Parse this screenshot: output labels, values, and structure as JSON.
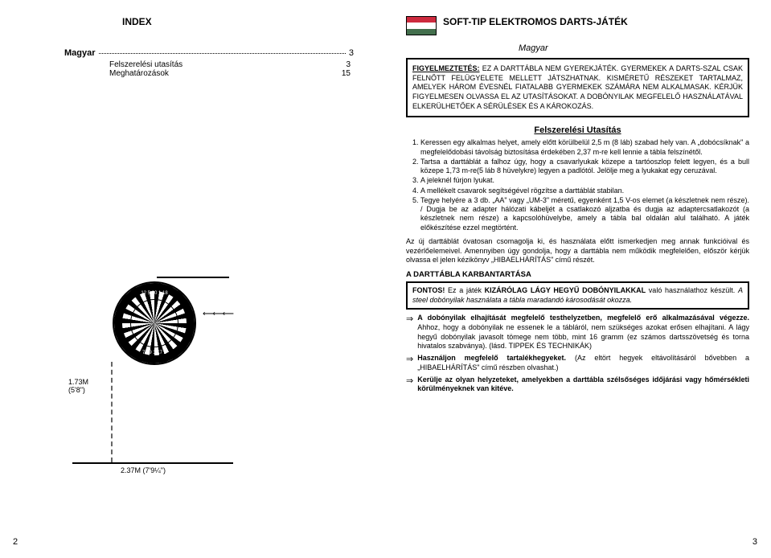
{
  "left": {
    "index_title": "INDEX",
    "row1_label": "Magyar",
    "row1_page": "3",
    "row2_label": "Felszerelési utasítás",
    "row2_page": "3",
    "row3_label": "Meghatározások",
    "row3_page": "15",
    "height_label": "1.73M\n(5'8\")",
    "throw_label": "2.37M (7'9¼\")",
    "dart_numbers_top": "12 5 20 1 18",
    "dart_numbers_bottom": "7 19 3 17 2",
    "pagenum": "2"
  },
  "right": {
    "flag_colors": [
      "#cd2a3e",
      "#ffffff",
      "#436f4d"
    ],
    "title": "SOFT-TIP ELEKTROMOS DARTS-JÁTÉK",
    "lang": "Magyar",
    "warning": "FIGYELMEZTETÉS:  EZ A DARTTÁBLA NEM GYEREKJÁTÉK. GYERMEKEK A DARTS-SZAL CSAK FELNŐTT FELÜGYELETE MELLETT JÁTSZHATNAK.  KISMÉRETŰ RÉSZEKET TARTALMAZ, AMELYEK HÁROM ÉVESNÉL FIATALABB GYERMEKEK SZÁMÁRA NEM ALKALMASAK.  KÉRJÜK FIGYELMESEN OLVASSA EL AZ UTASÍTÁSOKAT.  A DOBÓNYILAK MEGFELELŐ HASZNÁLATÁVAL ELKERÜLHETŐEK A SÉRÜLÉSEK ÉS A KÁROKOZÁS.",
    "warn_label": "FIGYELMEZTETÉS:",
    "section": "Felszerelési Utasítás",
    "li1": "Keressen egy alkalmas helyet, amely előtt körülbelül 2,5 m (8 láb) szabad hely van.  A „dobócsíknak\" a megfelelődobási távolság biztosítása érdekében 2,37 m-re kell lennie a tábla felszínétől.",
    "li2": "Tartsa a darttáblát a falhoz úgy, hogy a csavarlyukak közepe a tartóoszlop felett legyen, és a bull közepe 1,73 m-re(5 láb 8 hüvelykre) legyen a padlótól.  Jelölje meg a lyukakat egy ceruzával.",
    "li3": "A jeleknél fúrjon lyukat.",
    "li4": "A mellékelt csavarok segítségével rögzítse a darttáblát stabilan.",
    "li5": "Tegye helyére a 3 db. „AA\" vagy „UM-3\" méretű, egyenként 1,5 V-os elemet (a készletnek nem része). / Dugja be az adapter hálózati kábeljét a csatlakozó aljzatba és dugja az adaptercsatlakozót (a készletnek nem része) a kapcsolóhüvelybe, amely a tábla bal oldalán alul található. A játék előkészítése ezzel megtörtént.",
    "para": "Az új darttáblát óvatosan csomagolja ki, és használata előtt ismerkedjen meg annak funkcióival és vezérlőelemeivel.  Amennyiben úgy gondolja, hogy a darttábla nem működik megfelelően, először kérjük olvassa el jelen kézikönyv „HIBAELHÁRÍTÁS\" című részét.",
    "subheader": "A DARTTÁBLA KARBANTARTÁSA",
    "tipbox_html": "<b>FONTOS!</b>   Ez   a   játék   <b>KIZÁRÓLAG    LÁGY    HEGYŰ DOBÓNYILAKKAL</b> való használathoz készült.   <i>A steel dobónyilak használata a tábla maradandó károsodását okozza.</i>",
    "arrow1_html": "<b>A dobónyilak elhajítását megfelelő testhelyzetben, megfelelő erő alkalmazásával végezze.</b>   Ahhoz, hogy a dobónyilak ne essenek le a tábláról, nem szükséges azokat erősen elhajítani.  A lágy hegyű dobónyilak javasolt tömege nem több, mint 16 gramm (ez számos dartsszövetség és torna hivatalos szabványa).  (lásd. TIPPEK ÉS TECHNIKÁK)",
    "arrow2_html": "<b>Használjon megfelelő tartalékhegyeket.</b>  (Az eltört hegyek eltávolításáról bővebben a „HIBAELHÁRÍTÁS\" című részben olvashat.)",
    "arrow3_html": "<b>Kerülje az olyan helyzeteket, amelyekben a darttábla szélsőséges időjárási vagy hőmérsékleti körülményeknek van kitéve.</b>",
    "pagenum": "3"
  }
}
